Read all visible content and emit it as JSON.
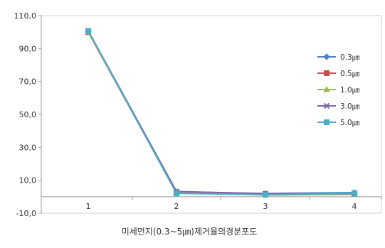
{
  "chart_data": {
    "type": "line",
    "x": [
      "1",
      "2",
      "3",
      "4"
    ],
    "xlabel": "미세먼지(0.3~5㎛)제거율의경분포도",
    "ylabel": "",
    "ylim": [
      -10,
      110
    ],
    "yticks": [
      "110,0",
      "90,0",
      "70,0",
      "50,0",
      "30,0",
      "10,0",
      "-10,0"
    ],
    "grid": false,
    "legend_position": "right",
    "series": [
      {
        "name": "0.3㎛",
        "color": "#4f7fbf",
        "marker": "diamond",
        "values": [
          100.5,
          3.0,
          2.0,
          2.5
        ]
      },
      {
        "name": "0.5㎛",
        "color": "#c0504d",
        "marker": "square",
        "values": [
          100.0,
          2.5,
          1.5,
          2.0
        ]
      },
      {
        "name": "1.0㎛",
        "color": "#9bbb59",
        "marker": "triangle",
        "values": [
          100.2,
          2.8,
          1.0,
          1.5
        ]
      },
      {
        "name": "3.0㎛",
        "color": "#8064a2",
        "marker": "x",
        "values": [
          100.8,
          3.2,
          1.8,
          1.8
        ]
      },
      {
        "name": "5.0㎛",
        "color": "#4bacc6",
        "marker": "square",
        "values": [
          100.6,
          2.0,
          1.2,
          2.2
        ]
      }
    ]
  }
}
